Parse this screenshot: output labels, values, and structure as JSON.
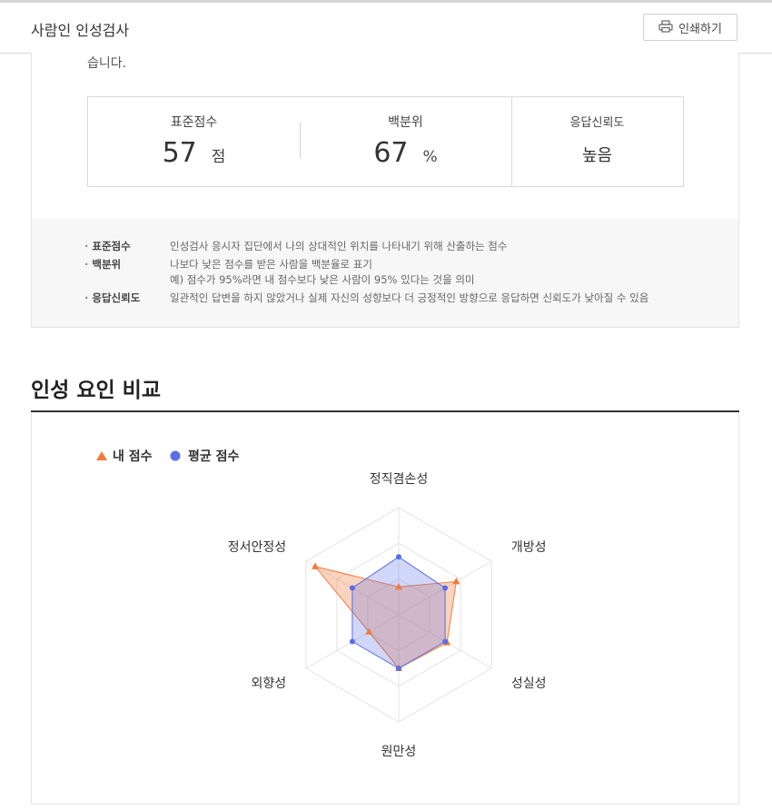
{
  "header": {
    "title": "사람인 인성검사",
    "print_label": "인쇄하기"
  },
  "result": {
    "cut_text": "습니다.",
    "stats": [
      {
        "label": "표준점수",
        "value": "57",
        "unit": "점"
      },
      {
        "label": "백분위",
        "value": "67",
        "unit": "%"
      },
      {
        "label": "응답신뢰도",
        "value": "높음"
      }
    ],
    "notes": [
      {
        "term": "표준점수",
        "lines": [
          "인성검사 응시자 집단에서 나의 상대적인 위치를 나타내기 위해 산출하는 점수"
        ]
      },
      {
        "term": "백분위",
        "lines": [
          "나보다 낮은 점수를 받은 사람을 백분율로 표기",
          "예) 점수가 95%라면 내 점수보다 낮은 사람이 95% 있다는 것을 의미"
        ]
      },
      {
        "term": "응답신뢰도",
        "lines": [
          "일관적인 답변을 하지 않았거나 실제 자신의 성향보다 더 긍정적인 방향으로 응답하면 신뢰도가 낮아질 수 있음"
        ]
      }
    ]
  },
  "section": {
    "title": "인성 요인 비교"
  },
  "colors": {
    "mine": "#f47a3b",
    "avg": "#5a6ee6",
    "grid": "#e3e3e3"
  },
  "chart_data": {
    "type": "radar",
    "categories": [
      "정직겸손성",
      "개방성",
      "성실성",
      "원만성",
      "외향성",
      "정서안정성"
    ],
    "rmax": 5,
    "series": [
      {
        "name": "내 점수",
        "marker": "triangle",
        "values": [
          1.3,
          3.1,
          2.6,
          2.5,
          1.6,
          4.5
        ]
      },
      {
        "name": "평균 점수",
        "marker": "circle",
        "values": [
          2.7,
          2.5,
          2.5,
          2.5,
          2.5,
          2.5
        ]
      }
    ]
  }
}
